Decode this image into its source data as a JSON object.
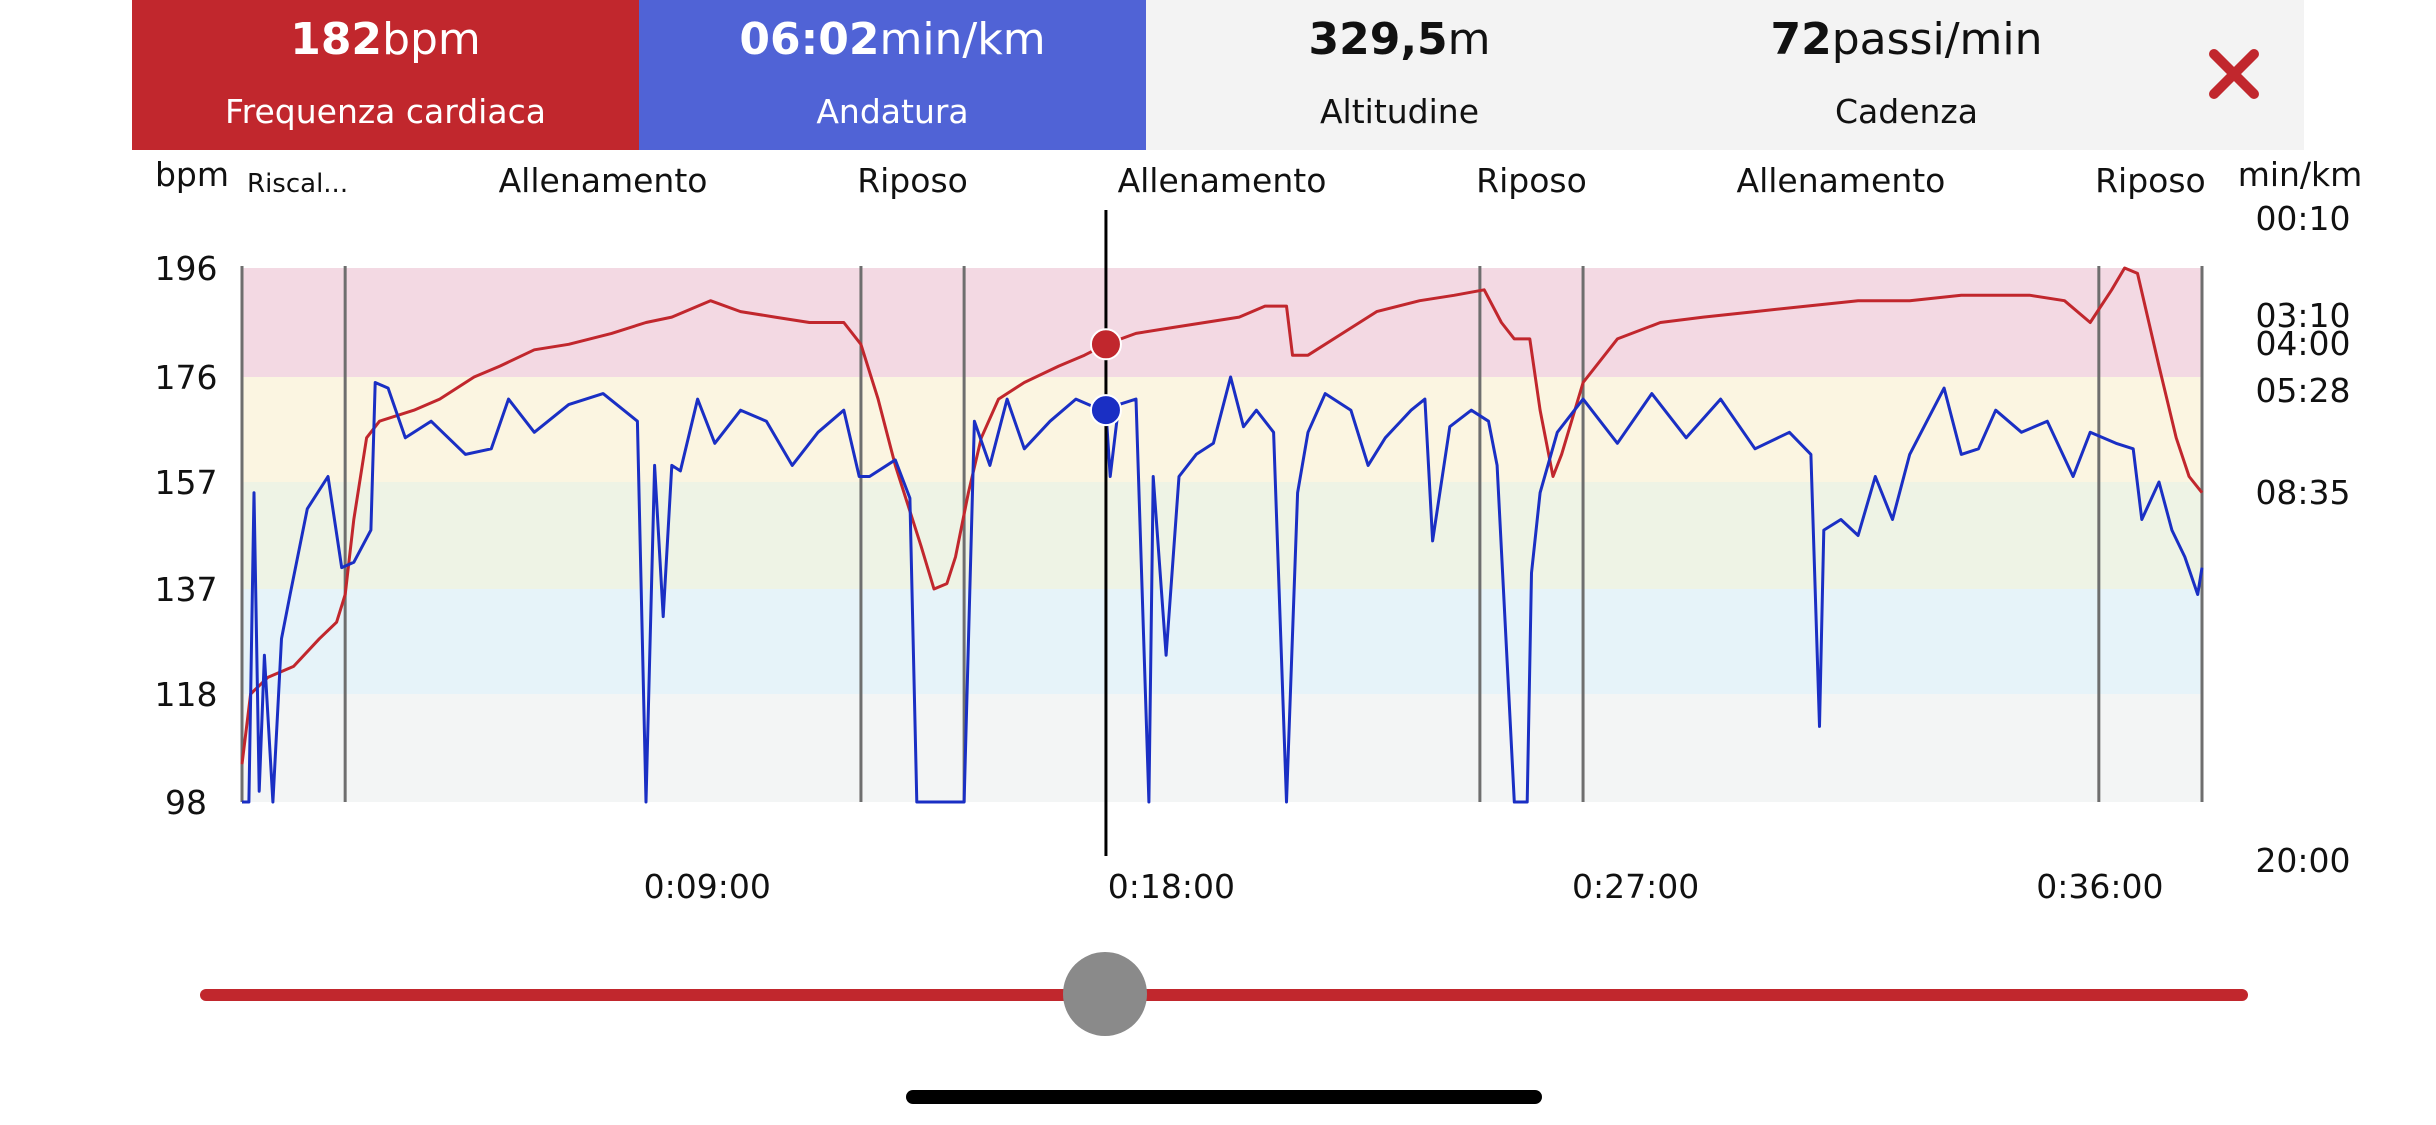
{
  "header": {
    "heart_rate": {
      "value": "182",
      "unit": "bpm",
      "label": "Frequenza cardiaca",
      "color": "#c1272d"
    },
    "pace": {
      "value": "06:02",
      "unit": "min/km",
      "label": "Andatura",
      "color": "#5063d6"
    },
    "altitude": {
      "value": "329,5",
      "unit": "m",
      "label": "Altitudine"
    },
    "cadence": {
      "value": "72",
      "unit": "passi/min",
      "label": "Cadenza"
    },
    "close_icon": "close-x-icon",
    "close_color": "#c1272d"
  },
  "chart_data": {
    "type": "line",
    "left_axis_label": "bpm",
    "right_axis_label": "min/km",
    "left_ticks": [
      "196",
      "176",
      "157",
      "137",
      "118",
      "98"
    ],
    "right_ticks": [
      "00:10",
      "03:10",
      "04:00",
      "05:28",
      "08:35",
      "20:00"
    ],
    "x_ticks": [
      "0:09:00",
      "0:18:00",
      "0:27:00",
      "0:36:00"
    ],
    "x_tick_seconds": [
      540,
      1080,
      1620,
      2160
    ],
    "x_range_seconds": [
      0,
      2280
    ],
    "phases": [
      {
        "label": "Riscal...",
        "start_s": 0,
        "end_s": 120
      },
      {
        "label": "Allenamento",
        "start_s": 120,
        "end_s": 720
      },
      {
        "label": "Riposo",
        "start_s": 720,
        "end_s": 840
      },
      {
        "label": "Allenamento",
        "start_s": 840,
        "end_s": 1440
      },
      {
        "label": "Riposo",
        "start_s": 1440,
        "end_s": 1560
      },
      {
        "label": "Allenamento",
        "start_s": 1560,
        "end_s": 2160
      },
      {
        "label": "Riposo",
        "start_s": 2160,
        "end_s": 2280
      }
    ],
    "hr_zones": [
      {
        "from": 176,
        "to": 196,
        "color": "#f3d9e3"
      },
      {
        "from": 157,
        "to": 176,
        "color": "#fbf5e1"
      },
      {
        "from": 137,
        "to": 157,
        "color": "#eef3e5"
      },
      {
        "from": 118,
        "to": 137,
        "color": "#e6f3f9"
      },
      {
        "from": 98,
        "to": 118,
        "color": "#f3f5f5"
      }
    ],
    "cursor_s": 1005,
    "series": [
      {
        "name": "Frequenza cardiaca",
        "color": "#c1272d",
        "y_axis": "bpm",
        "points": [
          [
            0,
            105
          ],
          [
            10,
            118
          ],
          [
            30,
            121
          ],
          [
            60,
            123
          ],
          [
            90,
            128
          ],
          [
            110,
            131
          ],
          [
            120,
            136
          ],
          [
            130,
            150
          ],
          [
            145,
            165
          ],
          [
            160,
            168
          ],
          [
            200,
            170
          ],
          [
            230,
            172
          ],
          [
            270,
            176
          ],
          [
            300,
            178
          ],
          [
            340,
            181
          ],
          [
            380,
            182
          ],
          [
            430,
            184
          ],
          [
            470,
            186
          ],
          [
            500,
            187
          ],
          [
            545,
            190
          ],
          [
            580,
            188
          ],
          [
            620,
            187
          ],
          [
            660,
            186
          ],
          [
            700,
            186
          ],
          [
            720,
            182
          ],
          [
            740,
            172
          ],
          [
            760,
            160
          ],
          [
            790,
            145
          ],
          [
            805,
            137
          ],
          [
            820,
            138
          ],
          [
            830,
            143
          ],
          [
            845,
            155
          ],
          [
            860,
            165
          ],
          [
            880,
            172
          ],
          [
            910,
            175
          ],
          [
            950,
            178
          ],
          [
            980,
            180
          ],
          [
            1005,
            182
          ],
          [
            1040,
            184
          ],
          [
            1080,
            185
          ],
          [
            1120,
            186
          ],
          [
            1160,
            187
          ],
          [
            1190,
            189
          ],
          [
            1215,
            189
          ],
          [
            1222,
            180
          ],
          [
            1240,
            180
          ],
          [
            1280,
            184
          ],
          [
            1320,
            188
          ],
          [
            1370,
            190
          ],
          [
            1410,
            191
          ],
          [
            1445,
            192
          ],
          [
            1465,
            186
          ],
          [
            1480,
            183
          ],
          [
            1498,
            183
          ],
          [
            1510,
            170
          ],
          [
            1525,
            158
          ],
          [
            1535,
            162
          ],
          [
            1560,
            175
          ],
          [
            1600,
            183
          ],
          [
            1650,
            186
          ],
          [
            1700,
            187
          ],
          [
            1760,
            188
          ],
          [
            1820,
            189
          ],
          [
            1880,
            190
          ],
          [
            1940,
            190
          ],
          [
            2000,
            191
          ],
          [
            2080,
            191
          ],
          [
            2120,
            190
          ],
          [
            2150,
            186
          ],
          [
            2175,
            192
          ],
          [
            2190,
            196
          ],
          [
            2205,
            195
          ],
          [
            2230,
            178
          ],
          [
            2250,
            165
          ],
          [
            2265,
            158
          ],
          [
            2280,
            155
          ]
        ]
      },
      {
        "name": "Andatura",
        "color": "#1a2fc4",
        "y_axis": "min/km",
        "points": [
          [
            0,
            89
          ],
          [
            8,
            88
          ],
          [
            14,
            155
          ],
          [
            20,
            100
          ],
          [
            26,
            125
          ],
          [
            36,
            96
          ],
          [
            46,
            128
          ],
          [
            56,
            136
          ],
          [
            76,
            152
          ],
          [
            100,
            158
          ],
          [
            116,
            141
          ],
          [
            130,
            142
          ],
          [
            150,
            148
          ],
          [
            155,
            175
          ],
          [
            170,
            174
          ],
          [
            190,
            165
          ],
          [
            220,
            168
          ],
          [
            260,
            162
          ],
          [
            290,
            163
          ],
          [
            310,
            172
          ],
          [
            340,
            166
          ],
          [
            380,
            171
          ],
          [
            420,
            173
          ],
          [
            460,
            168
          ],
          [
            470,
            88
          ],
          [
            480,
            160
          ],
          [
            490,
            132
          ],
          [
            500,
            160
          ],
          [
            510,
            159
          ],
          [
            530,
            172
          ],
          [
            550,
            164
          ],
          [
            580,
            170
          ],
          [
            610,
            168
          ],
          [
            640,
            160
          ],
          [
            670,
            166
          ],
          [
            700,
            170
          ],
          [
            718,
            158
          ],
          [
            730,
            158
          ],
          [
            760,
            161
          ],
          [
            777,
            154
          ],
          [
            785,
            88
          ],
          [
            800,
            88
          ],
          [
            840,
            88
          ],
          [
            852,
            168
          ],
          [
            870,
            160
          ],
          [
            890,
            172
          ],
          [
            910,
            163
          ],
          [
            940,
            168
          ],
          [
            970,
            172
          ],
          [
            1000,
            170
          ],
          [
            1005,
            170
          ],
          [
            1010,
            158
          ],
          [
            1020,
            171
          ],
          [
            1040,
            172
          ],
          [
            1055,
            88
          ],
          [
            1060,
            158
          ],
          [
            1075,
            125
          ],
          [
            1090,
            158
          ],
          [
            1110,
            162
          ],
          [
            1130,
            164
          ],
          [
            1150,
            176
          ],
          [
            1165,
            167
          ],
          [
            1180,
            170
          ],
          [
            1200,
            166
          ],
          [
            1215,
            88
          ],
          [
            1228,
            155
          ],
          [
            1240,
            166
          ],
          [
            1260,
            173
          ],
          [
            1290,
            170
          ],
          [
            1310,
            160
          ],
          [
            1330,
            165
          ],
          [
            1360,
            170
          ],
          [
            1376,
            172
          ],
          [
            1385,
            146
          ],
          [
            1405,
            167
          ],
          [
            1430,
            170
          ],
          [
            1450,
            168
          ],
          [
            1460,
            160
          ],
          [
            1480,
            88
          ],
          [
            1495,
            88
          ],
          [
            1500,
            140
          ],
          [
            1510,
            155
          ],
          [
            1530,
            166
          ],
          [
            1560,
            172
          ],
          [
            1600,
            164
          ],
          [
            1640,
            173
          ],
          [
            1680,
            165
          ],
          [
            1720,
            172
          ],
          [
            1760,
            163
          ],
          [
            1800,
            166
          ],
          [
            1825,
            162
          ],
          [
            1835,
            112
          ],
          [
            1840,
            148
          ],
          [
            1860,
            150
          ],
          [
            1880,
            147
          ],
          [
            1900,
            158
          ],
          [
            1920,
            150
          ],
          [
            1940,
            162
          ],
          [
            1960,
            168
          ],
          [
            1980,
            174
          ],
          [
            2000,
            162
          ],
          [
            2020,
            163
          ],
          [
            2040,
            170
          ],
          [
            2070,
            166
          ],
          [
            2100,
            168
          ],
          [
            2130,
            158
          ],
          [
            2150,
            166
          ],
          [
            2180,
            164
          ],
          [
            2200,
            163
          ],
          [
            2210,
            150
          ],
          [
            2230,
            157
          ],
          [
            2245,
            148
          ],
          [
            2260,
            143
          ],
          [
            2275,
            136
          ],
          [
            2280,
            141
          ]
        ]
      }
    ]
  }
}
